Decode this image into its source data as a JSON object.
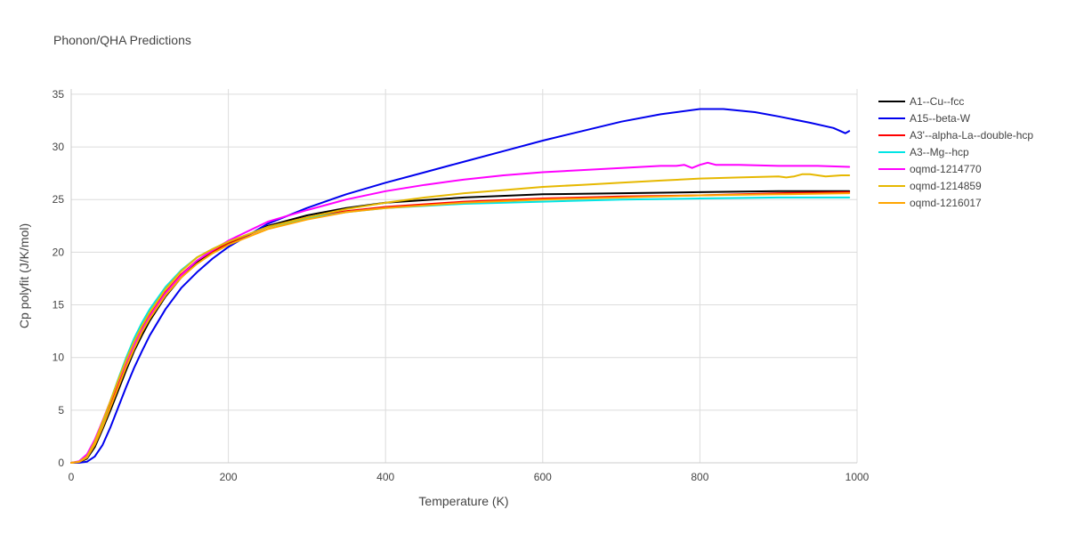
{
  "chart_data": {
    "type": "line",
    "title": "Phonon/QHA Predictions",
    "xlabel": "Temperature (K)",
    "ylabel": "Cp polyfit (J/K/mol)",
    "xlim": [
      0,
      1000
    ],
    "ylim": [
      0,
      35.5
    ],
    "xticks": [
      0,
      200,
      400,
      600,
      800,
      1000
    ],
    "yticks": [
      0,
      5,
      10,
      15,
      20,
      25,
      30,
      35
    ],
    "grid": true,
    "legend_position": "top-right",
    "series": [
      {
        "name": "A1--Cu--fcc",
        "color": "#000000",
        "x": [
          0,
          10,
          20,
          30,
          40,
          50,
          60,
          70,
          80,
          90,
          100,
          120,
          140,
          160,
          180,
          200,
          250,
          300,
          350,
          400,
          500,
          600,
          700,
          800,
          900,
          990
        ],
        "y": [
          0,
          0.05,
          0.4,
          1.5,
          3.2,
          5.0,
          6.9,
          8.8,
          10.6,
          12.1,
          13.5,
          15.8,
          17.6,
          19.0,
          20.0,
          20.8,
          22.5,
          23.5,
          24.2,
          24.7,
          25.2,
          25.5,
          25.6,
          25.7,
          25.8,
          25.8
        ]
      },
      {
        "name": "A15--beta-W",
        "color": "#0000ee",
        "x": [
          0,
          10,
          20,
          30,
          40,
          50,
          60,
          70,
          80,
          90,
          100,
          120,
          140,
          160,
          180,
          200,
          250,
          300,
          350,
          400,
          450,
          500,
          550,
          600,
          650,
          700,
          750,
          800,
          830,
          870,
          900,
          940,
          970,
          985,
          990
        ],
        "y": [
          0,
          0,
          0.1,
          0.6,
          1.7,
          3.4,
          5.3,
          7.2,
          9.0,
          10.6,
          12.1,
          14.6,
          16.6,
          18.1,
          19.4,
          20.5,
          22.7,
          24.2,
          25.5,
          26.6,
          27.6,
          28.6,
          29.6,
          30.6,
          31.5,
          32.4,
          33.1,
          33.6,
          33.6,
          33.3,
          32.9,
          32.3,
          31.8,
          31.3,
          31.5
        ]
      },
      {
        "name": "A3'--alpha-La--double-hcp",
        "color": "#ff0000",
        "x": [
          0,
          10,
          20,
          30,
          40,
          50,
          60,
          70,
          80,
          90,
          100,
          120,
          140,
          160,
          180,
          200,
          250,
          300,
          350,
          400,
          500,
          600,
          700,
          800,
          900,
          990
        ],
        "y": [
          0,
          0.1,
          0.6,
          1.9,
          3.7,
          5.6,
          7.6,
          9.5,
          11.2,
          12.7,
          14.0,
          16.2,
          17.9,
          19.2,
          20.1,
          20.9,
          22.4,
          23.3,
          23.9,
          24.3,
          24.8,
          25.1,
          25.3,
          25.4,
          25.6,
          25.7
        ]
      },
      {
        "name": "A3--Mg--hcp",
        "color": "#00e5e5",
        "x": [
          0,
          10,
          20,
          30,
          40,
          50,
          60,
          70,
          80,
          90,
          100,
          120,
          140,
          160,
          180,
          200,
          250,
          300,
          350,
          400,
          500,
          600,
          700,
          800,
          900,
          990
        ],
        "y": [
          0,
          0.1,
          0.5,
          1.8,
          3.8,
          5.9,
          8.0,
          10.0,
          11.8,
          13.3,
          14.6,
          16.7,
          18.3,
          19.5,
          20.3,
          21.0,
          22.4,
          23.2,
          23.8,
          24.2,
          24.6,
          24.8,
          25.0,
          25.1,
          25.2,
          25.2
        ]
      },
      {
        "name": "oqmd-1214770",
        "color": "#ff00ff",
        "x": [
          0,
          10,
          20,
          30,
          40,
          50,
          60,
          70,
          80,
          90,
          100,
          120,
          140,
          160,
          180,
          200,
          250,
          300,
          350,
          400,
          450,
          500,
          550,
          600,
          650,
          700,
          750,
          770,
          780,
          790,
          800,
          810,
          820,
          850,
          900,
          950,
          990
        ],
        "y": [
          0,
          0.15,
          0.8,
          2.2,
          4.0,
          5.9,
          7.8,
          9.6,
          11.2,
          12.6,
          13.9,
          16.1,
          17.8,
          19.2,
          20.2,
          21.1,
          22.9,
          24.0,
          25.0,
          25.8,
          26.4,
          26.9,
          27.3,
          27.6,
          27.8,
          28.0,
          28.2,
          28.2,
          28.3,
          28.0,
          28.3,
          28.5,
          28.3,
          28.3,
          28.2,
          28.2,
          28.1
        ]
      },
      {
        "name": "oqmd-1214859",
        "color": "#e6b800",
        "x": [
          0,
          10,
          20,
          30,
          40,
          50,
          60,
          70,
          80,
          90,
          100,
          120,
          140,
          160,
          180,
          200,
          250,
          300,
          350,
          400,
          450,
          500,
          550,
          600,
          650,
          700,
          750,
          800,
          850,
          900,
          910,
          920,
          930,
          940,
          960,
          980,
          990
        ],
        "y": [
          0,
          0.1,
          0.6,
          2.0,
          3.9,
          5.9,
          7.9,
          9.8,
          11.5,
          13.0,
          14.3,
          16.5,
          18.2,
          19.5,
          20.3,
          21.0,
          22.4,
          23.3,
          24.1,
          24.7,
          25.2,
          25.6,
          25.9,
          26.2,
          26.4,
          26.6,
          26.8,
          27.0,
          27.1,
          27.2,
          27.1,
          27.2,
          27.4,
          27.4,
          27.2,
          27.3,
          27.3
        ]
      },
      {
        "name": "oqmd-1216017",
        "color": "#ffa500",
        "x": [
          0,
          10,
          20,
          30,
          40,
          50,
          60,
          70,
          80,
          90,
          100,
          120,
          140,
          160,
          180,
          200,
          250,
          300,
          350,
          400,
          500,
          600,
          700,
          800,
          900,
          990
        ],
        "y": [
          0,
          0.08,
          0.5,
          1.7,
          3.4,
          5.3,
          7.2,
          9.1,
          10.8,
          12.4,
          13.7,
          15.9,
          17.6,
          18.9,
          19.9,
          20.7,
          22.2,
          23.1,
          23.8,
          24.2,
          24.7,
          25.0,
          25.2,
          25.4,
          25.5,
          25.6
        ]
      }
    ]
  }
}
